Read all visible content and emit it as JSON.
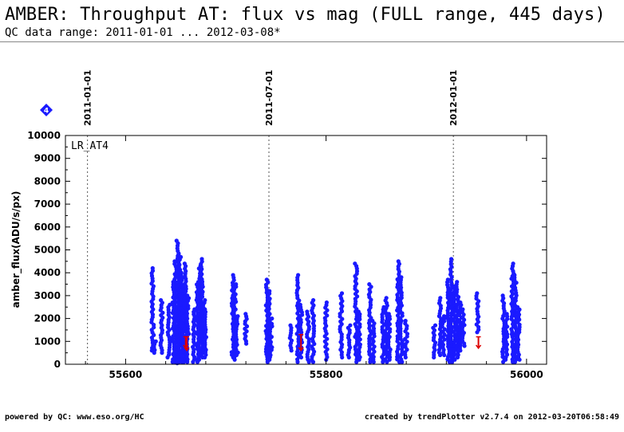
{
  "header": {
    "title": "AMBER: Throughput AT: flux vs mag (FULL range, 445 days)",
    "subtitle": "QC data range: 2011-01-01 ... 2012-03-08*"
  },
  "footer": {
    "left": "powered by QC: www.eso.org/HC",
    "right": "created by trendPlotter v2.7.4 on 2012-03-20T06:58:49"
  },
  "chart_data": {
    "type": "scatter",
    "title": "",
    "xlabel": "",
    "ylabel": "amber_flux(ADU/s/px)",
    "xlim": [
      55540,
      56020
    ],
    "ylim": [
      0,
      10000
    ],
    "xticks": [
      55600,
      55800,
      56000
    ],
    "yticks": [
      0,
      1000,
      2000,
      3000,
      4000,
      5000,
      6000,
      7000,
      8000,
      9000,
      10000
    ],
    "grid": false,
    "series_label": "LR_AT4",
    "marker_badge": "4",
    "colors": {
      "points": "#1a1aff",
      "outliers": "#dd0000",
      "badge": "#1a1aff"
    },
    "date_markers": [
      {
        "label": "2011-01-01",
        "x": 55562
      },
      {
        "label": "2011-07-01",
        "x": 55743
      },
      {
        "label": "2012-01-01",
        "x": 55927
      }
    ],
    "clusters": [
      {
        "x": 55627,
        "ymin": 600,
        "ymax": 4200
      },
      {
        "x": 55629,
        "ymin": 500,
        "ymax": 1000
      },
      {
        "x": 55636,
        "ymin": 500,
        "ymax": 2800
      },
      {
        "x": 55643,
        "ymin": 300,
        "ymax": 2600
      },
      {
        "x": 55648,
        "ymin": 100,
        "ymax": 3600
      },
      {
        "x": 55650,
        "ymin": 100,
        "ymax": 4500
      },
      {
        "x": 55652,
        "ymin": 50,
        "ymax": 5400
      },
      {
        "x": 55654,
        "ymin": 100,
        "ymax": 4800
      },
      {
        "x": 55656,
        "ymin": 100,
        "ymax": 4000
      },
      {
        "x": 55658,
        "ymin": 100,
        "ymax": 3200
      },
      {
        "x": 55660,
        "ymin": 200,
        "ymax": 4400
      },
      {
        "x": 55662,
        "ymin": 100,
        "ymax": 3000
      },
      {
        "x": 55668,
        "ymin": 100,
        "ymax": 2400
      },
      {
        "x": 55672,
        "ymin": 100,
        "ymax": 3600
      },
      {
        "x": 55674,
        "ymin": 200,
        "ymax": 4300
      },
      {
        "x": 55676,
        "ymin": 300,
        "ymax": 4600
      },
      {
        "x": 55678,
        "ymin": 500,
        "ymax": 2800
      },
      {
        "x": 55680,
        "ymin": 300,
        "ymax": 2400
      },
      {
        "x": 55707,
        "ymin": 300,
        "ymax": 3900
      },
      {
        "x": 55709,
        "ymin": 200,
        "ymax": 3500
      },
      {
        "x": 55711,
        "ymin": 400,
        "ymax": 2100
      },
      {
        "x": 55720,
        "ymin": 900,
        "ymax": 2200
      },
      {
        "x": 55741,
        "ymin": 100,
        "ymax": 3700
      },
      {
        "x": 55743,
        "ymin": 200,
        "ymax": 3200
      },
      {
        "x": 55745,
        "ymin": 400,
        "ymax": 2000
      },
      {
        "x": 55765,
        "ymin": 600,
        "ymax": 1700
      },
      {
        "x": 55772,
        "ymin": 100,
        "ymax": 3900
      },
      {
        "x": 55775,
        "ymin": 300,
        "ymax": 2600
      },
      {
        "x": 55782,
        "ymin": 100,
        "ymax": 2300
      },
      {
        "x": 55787,
        "ymin": 100,
        "ymax": 2800
      },
      {
        "x": 55800,
        "ymin": 200,
        "ymax": 2700
      },
      {
        "x": 55815,
        "ymin": 300,
        "ymax": 3100
      },
      {
        "x": 55823,
        "ymin": 300,
        "ymax": 1700
      },
      {
        "x": 55830,
        "ymin": 100,
        "ymax": 4400
      },
      {
        "x": 55833,
        "ymin": 200,
        "ymax": 2300
      },
      {
        "x": 55844,
        "ymin": 100,
        "ymax": 3500
      },
      {
        "x": 55847,
        "ymin": 100,
        "ymax": 1900
      },
      {
        "x": 55857,
        "ymin": 100,
        "ymax": 2500
      },
      {
        "x": 55860,
        "ymin": 100,
        "ymax": 2900
      },
      {
        "x": 55863,
        "ymin": 200,
        "ymax": 2200
      },
      {
        "x": 55872,
        "ymin": 100,
        "ymax": 4500
      },
      {
        "x": 55875,
        "ymin": 100,
        "ymax": 3800
      },
      {
        "x": 55880,
        "ymin": 300,
        "ymax": 1900
      },
      {
        "x": 55908,
        "ymin": 300,
        "ymax": 1700
      },
      {
        "x": 55914,
        "ymin": 400,
        "ymax": 2900
      },
      {
        "x": 55917,
        "ymin": 400,
        "ymax": 2100
      },
      {
        "x": 55922,
        "ymin": 100,
        "ymax": 3700
      },
      {
        "x": 55925,
        "ymin": 100,
        "ymax": 4600
      },
      {
        "x": 55928,
        "ymin": 200,
        "ymax": 3400
      },
      {
        "x": 55931,
        "ymin": 300,
        "ymax": 3600
      },
      {
        "x": 55934,
        "ymin": 600,
        "ymax": 2700
      },
      {
        "x": 55937,
        "ymin": 800,
        "ymax": 2400
      },
      {
        "x": 55951,
        "ymin": 1400,
        "ymax": 3100
      },
      {
        "x": 55977,
        "ymin": 100,
        "ymax": 3000
      },
      {
        "x": 55980,
        "ymin": 200,
        "ymax": 2200
      },
      {
        "x": 55986,
        "ymin": 100,
        "ymax": 4400
      },
      {
        "x": 55989,
        "ymin": 100,
        "ymax": 3900
      },
      {
        "x": 55992,
        "ymin": 200,
        "ymax": 2500
      }
    ],
    "outliers": [
      {
        "x": 55661,
        "y": 600,
        "y_from": 1200
      },
      {
        "x": 55660,
        "y": 700,
        "y_from": 1200
      },
      {
        "x": 55775,
        "y": 600,
        "y_from": 1300
      },
      {
        "x": 55952,
        "y": 700,
        "y_from": 1200
      }
    ]
  }
}
